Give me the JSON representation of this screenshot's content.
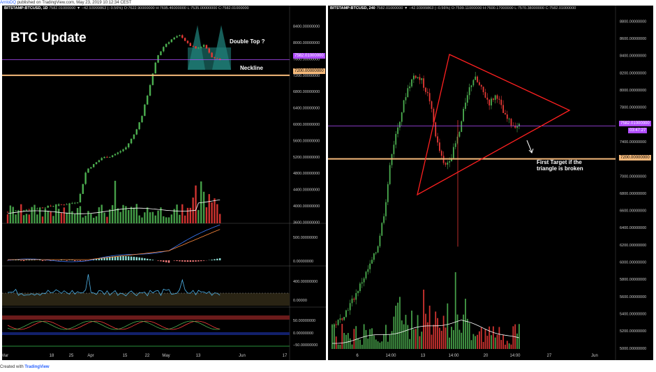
{
  "header": {
    "author": "ArnloDQ",
    "published_text": "published on TradingView.com, May 23, 2019 10:12:34 CEST"
  },
  "footer": {
    "created_with": "Created with",
    "brand": "TradingView"
  },
  "left_chart": {
    "header_parts": [
      {
        "t": "BITSTAMP:BTCUSD, 1D",
        "c": "sym"
      },
      {
        "t": " 7582.01000000 ▼ −42.93999863 (−0.56%)",
        "c": "v"
      },
      {
        "t": " O:7622.90000000 H:7695.46000000 L:7535.00000000 C:7582.01000000",
        "c": "v"
      }
    ],
    "title": "BTC Update",
    "annotations": {
      "double_top": "Double Top ?",
      "neckline": "Neckline"
    },
    "price_tags": {
      "current": "7582.01000000",
      "neckline": "7200.00000000"
    },
    "y_ticks": [
      "8400.00000000",
      "8000.00000000",
      "7600.00000000",
      "7200.00000000",
      "6800.00000000",
      "6400.00000000",
      "6000.00000000",
      "5600.00000000",
      "5200.00000000",
      "4800.00000000",
      "4400.00000000",
      "4000.00000000",
      "3600.00000000"
    ],
    "macd_ticks": [
      "500.00000000",
      "0.00000000"
    ],
    "osc_ticks": [
      "400.00000000",
      "0.00000"
    ],
    "rsi_ticks": [
      "50.00000000",
      "0.00000000",
      "−50.00000000"
    ],
    "x_ticks": [
      "Mar",
      "18",
      "25",
      "Apr",
      "15",
      "22",
      "May",
      "13",
      "Jun",
      "17"
    ]
  },
  "right_chart": {
    "header_parts": [
      {
        "t": "BITSTAMP:BTCUSD, 240",
        "c": "sym"
      },
      {
        "t": " 7582.01000000 ▼ −42.93999863 (−0.56%)",
        "c": "v"
      },
      {
        "t": " O:7599.11000000 H:7600.17000000 L:7570.38000000 C:7582.01000000",
        "c": "v"
      }
    ],
    "annotation": "First Target if the triangle is broken",
    "price_tags": {
      "current": "7582.01000000",
      "countdown": "03:47:27",
      "target": "7200.00000000"
    },
    "y_ticks": [
      "8800.00000000",
      "8600.00000000",
      "8400.00000000",
      "8200.00000000",
      "8000.00000000",
      "7800.00000000",
      "7600.00000000",
      "7400.00000000",
      "7200.00000000",
      "7000.00000000",
      "6800.00000000",
      "6600.00000000",
      "6400.00000000",
      "6200.00000000",
      "6000.00000000",
      "5800.00000000",
      "5600.00000000",
      "5400.00000000",
      "5200.00000000",
      "5000.00000000"
    ],
    "x_ticks": [
      "6",
      "14:00",
      "13",
      "14:00",
      "20",
      "14:00",
      "27",
      "Jun"
    ]
  },
  "colors": {
    "up": "#4caf50",
    "down": "#e53935",
    "support": "#f5b97a",
    "current": "#b04cff",
    "triangle": "#ff2020",
    "macd": "#3d7cff",
    "signal": "#ff8a3d"
  },
  "chart_data": [
    {
      "type": "candlestick",
      "title": "",
      "symbol": "BITSTAMP:BTCUSD",
      "interval": "1D",
      "last": {
        "open": 7622.9,
        "high": 7695.46,
        "low": 7535.0,
        "close": 7582.01
      },
      "ylim": [
        3400,
        8600
      ],
      "x": [
        "Mar",
        "18",
        "25",
        "Apr",
        "15",
        "22",
        "May",
        "13",
        "Jun",
        "17"
      ],
      "close_approx": [
        3850,
        3880,
        3900,
        3920,
        3950,
        3980,
        4010,
        4030,
        4060,
        4110,
        4880,
        5020,
        5180,
        5210,
        5300,
        5420,
        5720,
        6150,
        6880,
        7650,
        7950,
        8100,
        8180,
        7950,
        7850,
        7950,
        7650,
        7582
      ],
      "levels": [
        {
          "name": "Neckline",
          "value": 7200
        },
        {
          "name": "last",
          "value": 7582.01
        }
      ],
      "subpanels": [
        "volume",
        "macd",
        "oscillator",
        "rsi"
      ]
    },
    {
      "type": "candlestick",
      "title": "",
      "symbol": "BITSTAMP:BTCUSD",
      "interval": "240",
      "last": {
        "open": 7599.11,
        "high": 7600.17,
        "low": 7570.38,
        "close": 7582.01
      },
      "ylim": [
        4950,
        8900
      ],
      "x": [
        "6",
        "14:00",
        "13",
        "14:00",
        "20",
        "14:00",
        "27",
        "Jun"
      ],
      "close_approx": [
        5250,
        5320,
        5450,
        5600,
        5780,
        5950,
        6150,
        6600,
        7300,
        7650,
        8000,
        8180,
        8100,
        7900,
        7400,
        7100,
        7250,
        7500,
        7950,
        8150,
        8000,
        7850,
        7950,
        7700,
        7600,
        7582
      ],
      "levels": [
        {
          "name": "First Target",
          "value": 7200
        },
        {
          "name": "last",
          "value": 7582.01
        }
      ],
      "triangle": {
        "upper_from": 8330,
        "upper_to": 7760,
        "lower_from": 6800,
        "apex": 7760
      }
    }
  ]
}
